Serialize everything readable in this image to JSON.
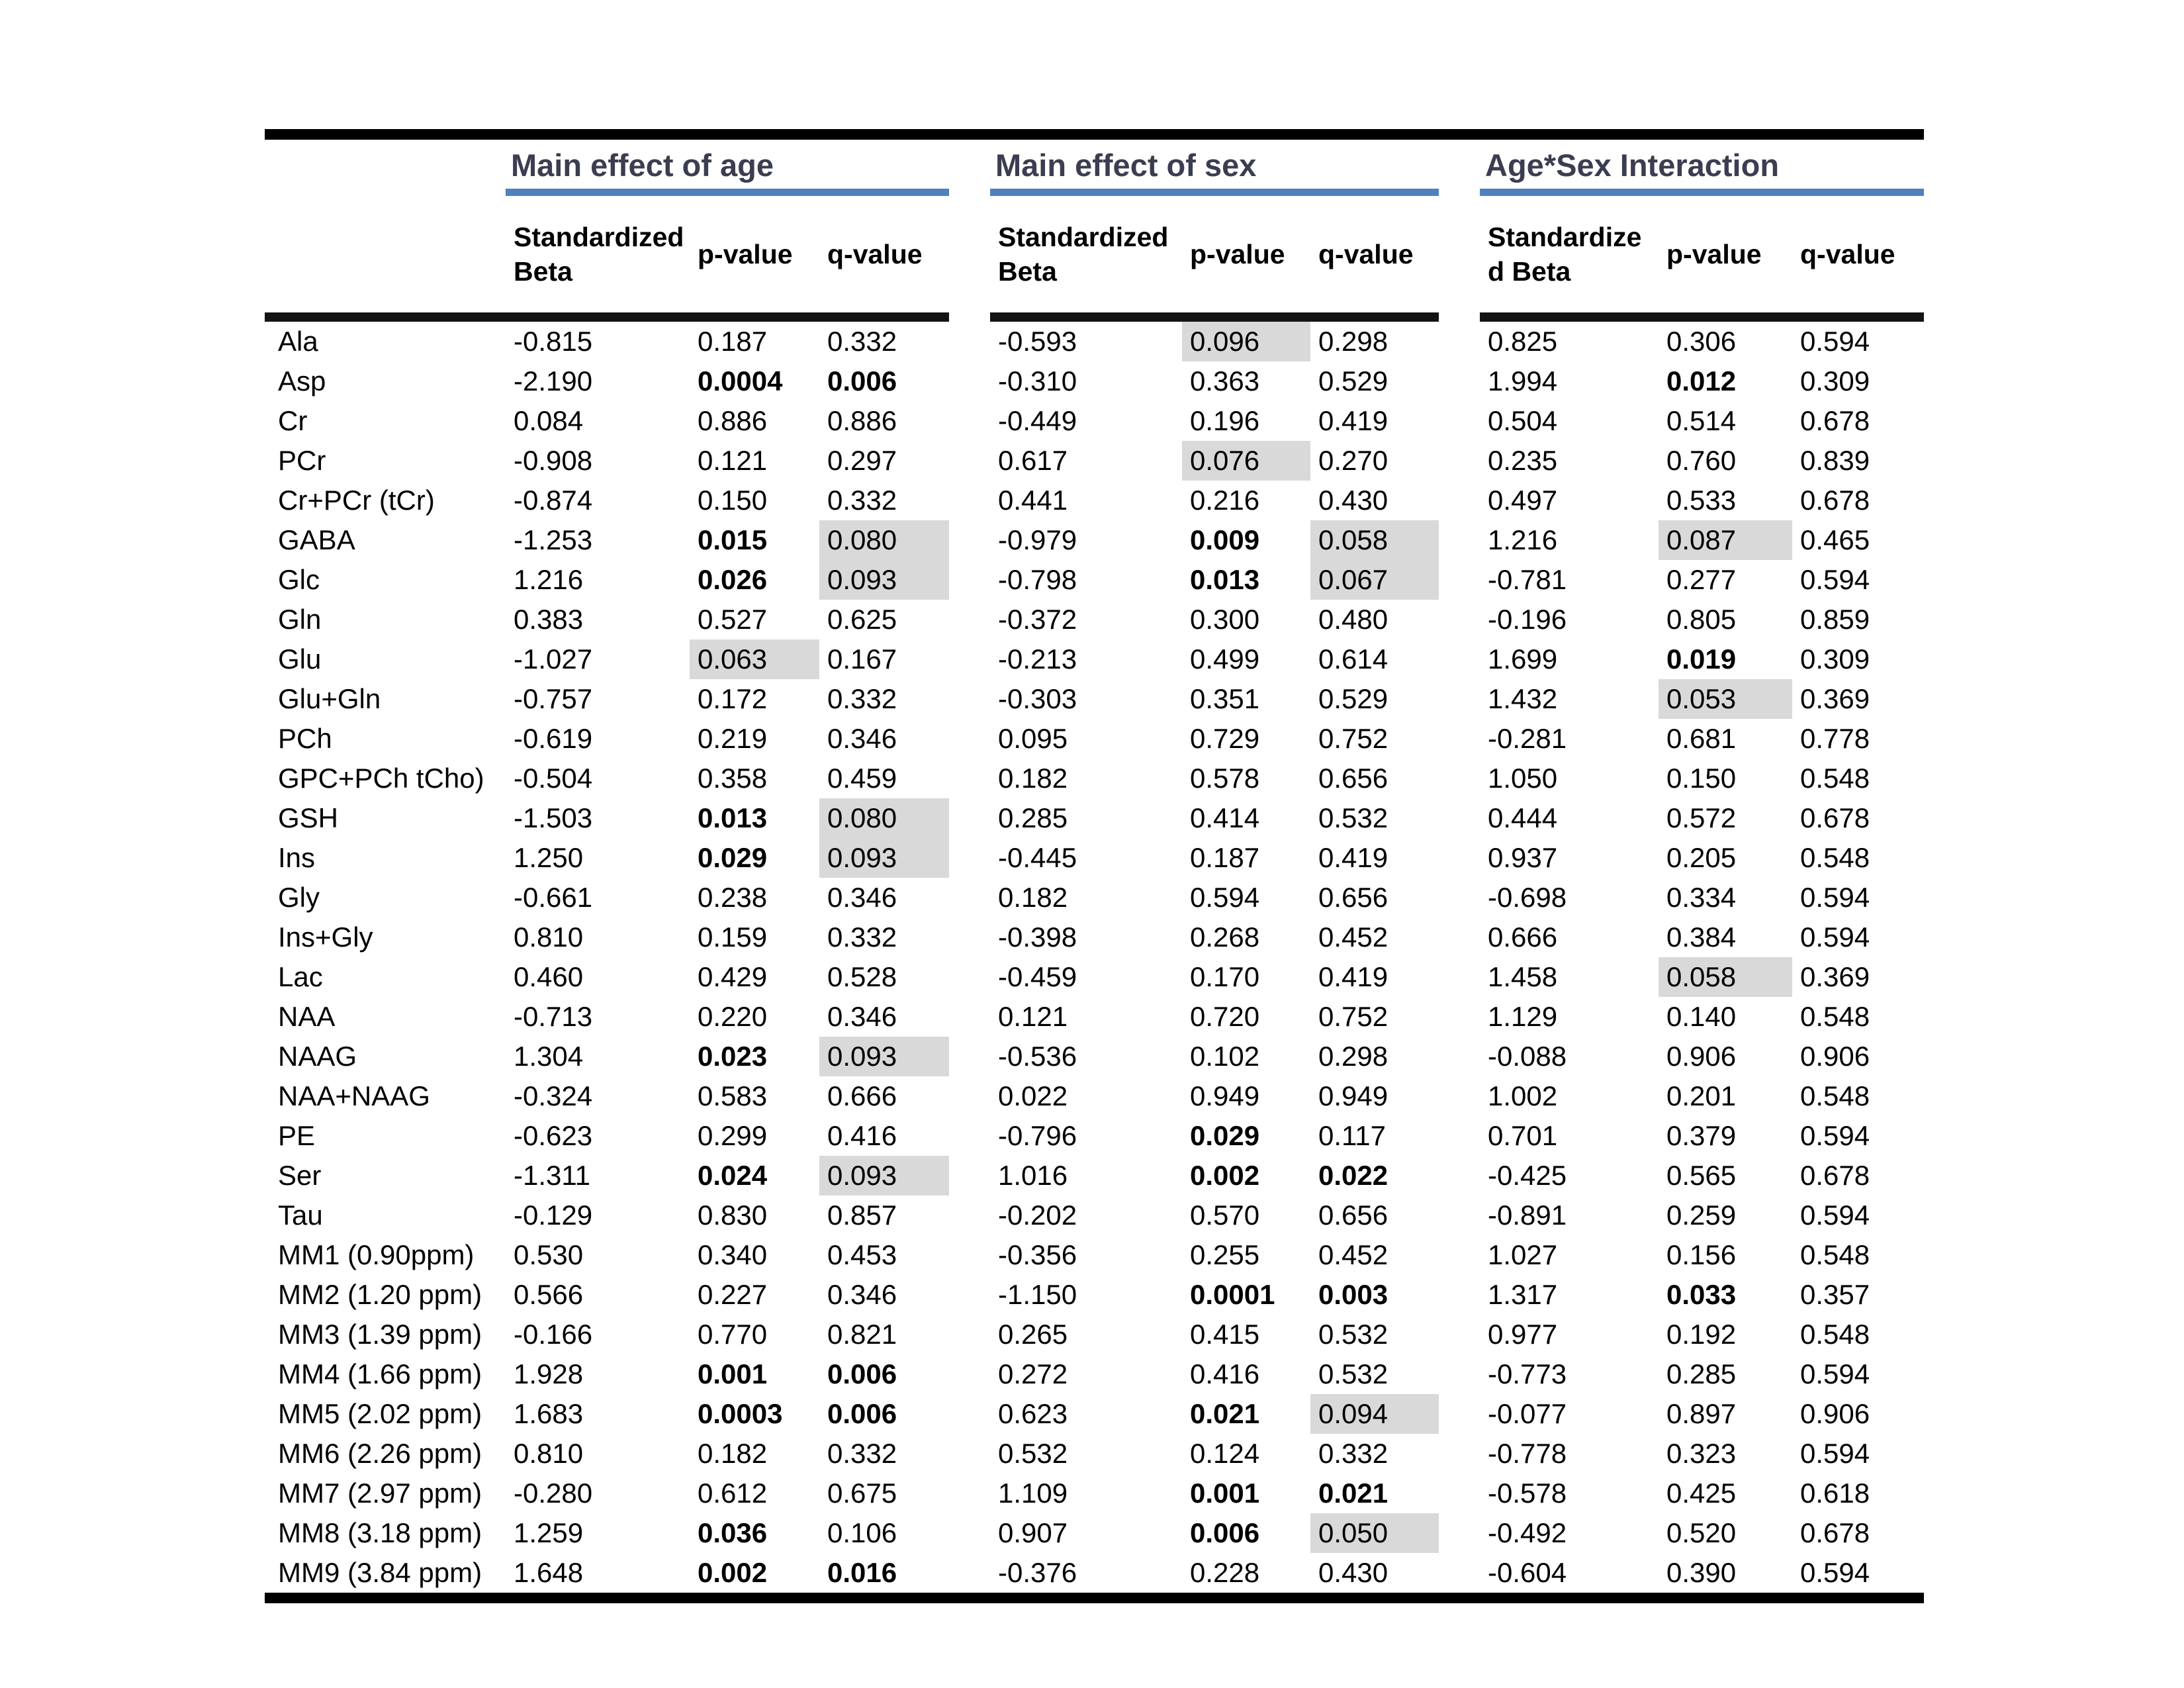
{
  "page": {
    "background": "#ffffff"
  },
  "table": {
    "accent_blue": "#4e81bd",
    "title_color": "#3a3e50",
    "highlight_gray": "#d9d9d9",
    "groups": [
      {
        "title": "Main effect of age",
        "beta_line1": "Standardized",
        "beta_line2": "Beta",
        "p_label": "p-value",
        "q_label": "q-value"
      },
      {
        "title": "Main effect of sex",
        "beta_line1": "Standardized",
        "beta_line2": "Beta",
        "p_label": "p-value",
        "q_label": "q-value"
      },
      {
        "title": "Age*Sex Interaction",
        "beta_line1": "Standardize",
        "beta_line2": "d Beta",
        "p_label": "p-value",
        "q_label": "q-value"
      }
    ],
    "rows": [
      {
        "label": "Ala",
        "values": [
          "-0.815",
          "0.187",
          "0.332",
          "-0.593",
          "0.096",
          "0.298",
          "0.825",
          "0.306",
          "0.594"
        ],
        "flags": [
          "n",
          "n",
          "n",
          "n",
          "h",
          "n",
          "n",
          "n",
          "n"
        ]
      },
      {
        "label": "Asp",
        "values": [
          "-2.190",
          "0.0004",
          "0.006",
          "-0.310",
          "0.363",
          "0.529",
          "1.994",
          "0.012",
          "0.309"
        ],
        "flags": [
          "n",
          "b",
          "b",
          "n",
          "n",
          "n",
          "n",
          "b",
          "n"
        ]
      },
      {
        "label": "Cr",
        "values": [
          "0.084",
          "0.886",
          "0.886",
          "-0.449",
          "0.196",
          "0.419",
          "0.504",
          "0.514",
          "0.678"
        ],
        "flags": [
          "n",
          "n",
          "n",
          "n",
          "n",
          "n",
          "n",
          "n",
          "n"
        ]
      },
      {
        "label": "PCr",
        "values": [
          "-0.908",
          "0.121",
          "0.297",
          "0.617",
          "0.076",
          "0.270",
          "0.235",
          "0.760",
          "0.839"
        ],
        "flags": [
          "n",
          "n",
          "n",
          "n",
          "h",
          "n",
          "n",
          "n",
          "n"
        ]
      },
      {
        "label": "Cr+PCr (tCr)",
        "values": [
          "-0.874",
          "0.150",
          "0.332",
          "0.441",
          "0.216",
          "0.430",
          "0.497",
          "0.533",
          "0.678"
        ],
        "flags": [
          "n",
          "n",
          "n",
          "n",
          "n",
          "n",
          "n",
          "n",
          "n"
        ]
      },
      {
        "label": "GABA",
        "values": [
          "-1.253",
          "0.015",
          "0.080",
          "-0.979",
          "0.009",
          "0.058",
          "1.216",
          "0.087",
          "0.465"
        ],
        "flags": [
          "n",
          "b",
          "h",
          "n",
          "b",
          "h",
          "n",
          "h",
          "n"
        ]
      },
      {
        "label": "Glc",
        "values": [
          "1.216",
          "0.026",
          "0.093",
          "-0.798",
          "0.013",
          "0.067",
          "-0.781",
          "0.277",
          "0.594"
        ],
        "flags": [
          "n",
          "b",
          "h",
          "n",
          "b",
          "h",
          "n",
          "n",
          "n"
        ]
      },
      {
        "label": "Gln",
        "values": [
          "0.383",
          "0.527",
          "0.625",
          "-0.372",
          "0.300",
          "0.480",
          "-0.196",
          "0.805",
          "0.859"
        ],
        "flags": [
          "n",
          "n",
          "n",
          "n",
          "n",
          "n",
          "n",
          "n",
          "n"
        ]
      },
      {
        "label": "Glu",
        "values": [
          "-1.027",
          "0.063",
          "0.167",
          "-0.213",
          "0.499",
          "0.614",
          "1.699",
          "0.019",
          "0.309"
        ],
        "flags": [
          "n",
          "h",
          "n",
          "n",
          "n",
          "n",
          "n",
          "b",
          "n"
        ]
      },
      {
        "label": "Glu+Gln",
        "values": [
          "-0.757",
          "0.172",
          "0.332",
          "-0.303",
          "0.351",
          "0.529",
          "1.432",
          "0.053",
          "0.369"
        ],
        "flags": [
          "n",
          "n",
          "n",
          "n",
          "n",
          "n",
          "n",
          "h",
          "n"
        ]
      },
      {
        "label": "PCh",
        "values": [
          "-0.619",
          "0.219",
          "0.346",
          "0.095",
          "0.729",
          "0.752",
          "-0.281",
          "0.681",
          "0.778"
        ],
        "flags": [
          "n",
          "n",
          "n",
          "n",
          "n",
          "n",
          "n",
          "n",
          "n"
        ]
      },
      {
        "label": "GPC+PCh tCho)",
        "values": [
          "-0.504",
          "0.358",
          "0.459",
          "0.182",
          "0.578",
          "0.656",
          "1.050",
          "0.150",
          "0.548"
        ],
        "flags": [
          "n",
          "n",
          "n",
          "n",
          "n",
          "n",
          "n",
          "n",
          "n"
        ]
      },
      {
        "label": "GSH",
        "values": [
          "-1.503",
          "0.013",
          "0.080",
          "0.285",
          "0.414",
          "0.532",
          "0.444",
          "0.572",
          "0.678"
        ],
        "flags": [
          "n",
          "b",
          "h",
          "n",
          "n",
          "n",
          "n",
          "n",
          "n"
        ]
      },
      {
        "label": "Ins",
        "values": [
          "1.250",
          "0.029",
          "0.093",
          "-0.445",
          "0.187",
          "0.419",
          "0.937",
          "0.205",
          "0.548"
        ],
        "flags": [
          "n",
          "b",
          "h",
          "n",
          "n",
          "n",
          "n",
          "n",
          "n"
        ]
      },
      {
        "label": "Gly",
        "values": [
          "-0.661",
          "0.238",
          "0.346",
          "0.182",
          "0.594",
          "0.656",
          "-0.698",
          "0.334",
          "0.594"
        ],
        "flags": [
          "n",
          "n",
          "n",
          "n",
          "n",
          "n",
          "n",
          "n",
          "n"
        ]
      },
      {
        "label": "Ins+Gly",
        "values": [
          "0.810",
          "0.159",
          "0.332",
          "-0.398",
          "0.268",
          "0.452",
          "0.666",
          "0.384",
          "0.594"
        ],
        "flags": [
          "n",
          "n",
          "n",
          "n",
          "n",
          "n",
          "n",
          "n",
          "n"
        ]
      },
      {
        "label": "Lac",
        "values": [
          "0.460",
          "0.429",
          "0.528",
          "-0.459",
          "0.170",
          "0.419",
          "1.458",
          "0.058",
          "0.369"
        ],
        "flags": [
          "n",
          "n",
          "n",
          "n",
          "n",
          "n",
          "n",
          "h",
          "n"
        ]
      },
      {
        "label": "NAA",
        "values": [
          "-0.713",
          "0.220",
          "0.346",
          "0.121",
          "0.720",
          "0.752",
          "1.129",
          "0.140",
          "0.548"
        ],
        "flags": [
          "n",
          "n",
          "n",
          "n",
          "n",
          "n",
          "n",
          "n",
          "n"
        ]
      },
      {
        "label": "NAAG",
        "values": [
          "1.304",
          "0.023",
          "0.093",
          "-0.536",
          "0.102",
          "0.298",
          "-0.088",
          "0.906",
          "0.906"
        ],
        "flags": [
          "n",
          "b",
          "h",
          "n",
          "n",
          "n",
          "n",
          "n",
          "n"
        ]
      },
      {
        "label": "NAA+NAAG",
        "values": [
          "-0.324",
          "0.583",
          "0.666",
          "0.022",
          "0.949",
          "0.949",
          "1.002",
          "0.201",
          "0.548"
        ],
        "flags": [
          "n",
          "n",
          "n",
          "n",
          "n",
          "n",
          "n",
          "n",
          "n"
        ]
      },
      {
        "label": "PE",
        "values": [
          "-0.623",
          "0.299",
          "0.416",
          "-0.796",
          "0.029",
          "0.117",
          "0.701",
          "0.379",
          "0.594"
        ],
        "flags": [
          "n",
          "n",
          "n",
          "n",
          "b",
          "n",
          "n",
          "n",
          "n"
        ]
      },
      {
        "label": "Ser",
        "values": [
          "-1.311",
          "0.024",
          "0.093",
          "1.016",
          "0.002",
          "0.022",
          "-0.425",
          "0.565",
          "0.678"
        ],
        "flags": [
          "n",
          "b",
          "h",
          "n",
          "b",
          "b",
          "n",
          "n",
          "n"
        ]
      },
      {
        "label": "Tau",
        "values": [
          "-0.129",
          "0.830",
          "0.857",
          "-0.202",
          "0.570",
          "0.656",
          "-0.891",
          "0.259",
          "0.594"
        ],
        "flags": [
          "n",
          "n",
          "n",
          "n",
          "n",
          "n",
          "n",
          "n",
          "n"
        ]
      },
      {
        "label": "MM1 (0.90ppm)",
        "values": [
          "0.530",
          "0.340",
          "0.453",
          "-0.356",
          "0.255",
          "0.452",
          "1.027",
          "0.156",
          "0.548"
        ],
        "flags": [
          "n",
          "n",
          "n",
          "n",
          "n",
          "n",
          "n",
          "n",
          "n"
        ]
      },
      {
        "label": "MM2 (1.20 ppm)",
        "values": [
          "0.566",
          "0.227",
          "0.346",
          "-1.150",
          "0.0001",
          "0.003",
          "1.317",
          "0.033",
          "0.357"
        ],
        "flags": [
          "n",
          "n",
          "n",
          "n",
          "b",
          "b",
          "n",
          "b",
          "n"
        ]
      },
      {
        "label": "MM3 (1.39 ppm)",
        "values": [
          "-0.166",
          "0.770",
          "0.821",
          "0.265",
          "0.415",
          "0.532",
          "0.977",
          "0.192",
          "0.548"
        ],
        "flags": [
          "n",
          "n",
          "n",
          "n",
          "n",
          "n",
          "n",
          "n",
          "n"
        ]
      },
      {
        "label": "MM4 (1.66 ppm)",
        "values": [
          "1.928",
          "0.001",
          "0.006",
          "0.272",
          "0.416",
          "0.532",
          "-0.773",
          "0.285",
          "0.594"
        ],
        "flags": [
          "n",
          "b",
          "b",
          "n",
          "n",
          "n",
          "n",
          "n",
          "n"
        ]
      },
      {
        "label": "MM5 (2.02 ppm)",
        "values": [
          "1.683",
          "0.0003",
          "0.006",
          "0.623",
          "0.021",
          "0.094",
          "-0.077",
          "0.897",
          "0.906"
        ],
        "flags": [
          "n",
          "b",
          "b",
          "n",
          "b",
          "h",
          "n",
          "n",
          "n"
        ]
      },
      {
        "label": "MM6 (2.26 ppm)",
        "values": [
          "0.810",
          "0.182",
          "0.332",
          "0.532",
          "0.124",
          "0.332",
          "-0.778",
          "0.323",
          "0.594"
        ],
        "flags": [
          "n",
          "n",
          "n",
          "n",
          "n",
          "n",
          "n",
          "n",
          "n"
        ]
      },
      {
        "label": "MM7 (2.97 ppm)",
        "values": [
          "-0.280",
          "0.612",
          "0.675",
          "1.109",
          "0.001",
          "0.021",
          "-0.578",
          "0.425",
          "0.618"
        ],
        "flags": [
          "n",
          "n",
          "n",
          "n",
          "b",
          "b",
          "n",
          "n",
          "n"
        ]
      },
      {
        "label": "MM8 (3.18 ppm)",
        "values": [
          "1.259",
          "0.036",
          "0.106",
          "0.907",
          "0.006",
          "0.050",
          "-0.492",
          "0.520",
          "0.678"
        ],
        "flags": [
          "n",
          "b",
          "n",
          "n",
          "b",
          "h",
          "n",
          "n",
          "n"
        ]
      },
      {
        "label": "MM9 (3.84 ppm)",
        "values": [
          "1.648",
          "0.002",
          "0.016",
          "-0.376",
          "0.228",
          "0.430",
          "-0.604",
          "0.390",
          "0.594"
        ],
        "flags": [
          "n",
          "b",
          "b",
          "n",
          "n",
          "n",
          "n",
          "n",
          "n"
        ]
      }
    ]
  }
}
